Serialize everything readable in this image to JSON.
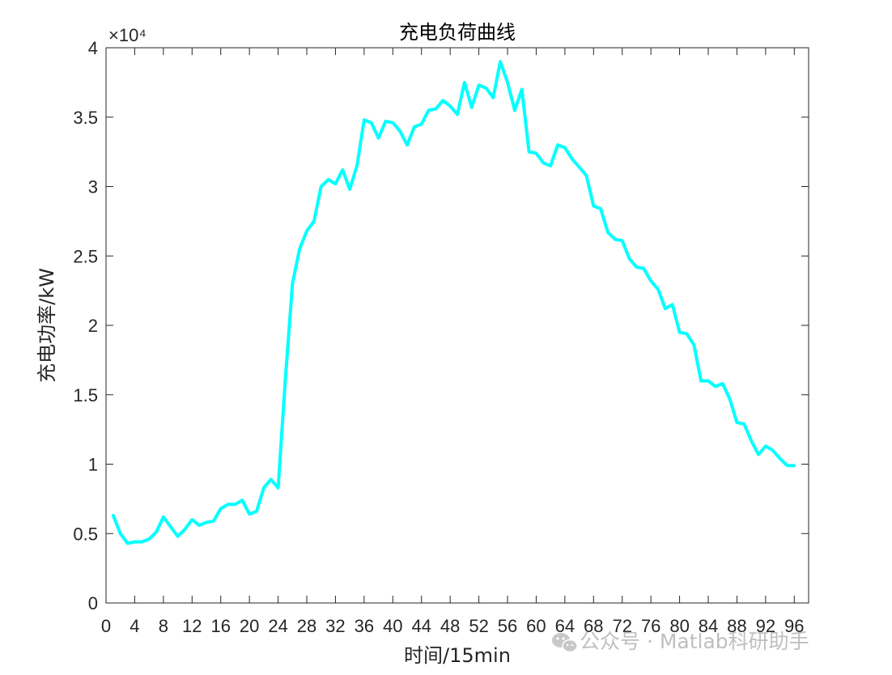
{
  "chart_data": {
    "type": "line",
    "title": "充电负荷曲线",
    "xlabel": "时间/15min",
    "ylabel": "充电功率/kW",
    "y_exponent_label": "×10⁴",
    "xlim": [
      0,
      98
    ],
    "ylim": [
      0,
      4
    ],
    "xticks": [
      0,
      4,
      8,
      12,
      16,
      20,
      24,
      28,
      32,
      36,
      40,
      44,
      48,
      52,
      56,
      60,
      64,
      68,
      72,
      76,
      80,
      84,
      88,
      92,
      96
    ],
    "yticks": [
      0,
      0.5,
      1,
      1.5,
      2,
      2.5,
      3,
      3.5,
      4
    ],
    "ytick_labels": [
      "0",
      "0.5",
      "1",
      "1.5",
      "2",
      "2.5",
      "3",
      "3.5",
      "4"
    ],
    "grid": false,
    "box": true,
    "series": [
      {
        "color": "#00ffff",
        "x": [
          1,
          2,
          3,
          4,
          5,
          6,
          7,
          8,
          9,
          10,
          11,
          12,
          13,
          14,
          15,
          16,
          17,
          18,
          19,
          20,
          21,
          22,
          23,
          24,
          25,
          26,
          27,
          28,
          29,
          30,
          31,
          32,
          33,
          34,
          35,
          36,
          37,
          38,
          39,
          40,
          41,
          42,
          43,
          44,
          45,
          46,
          47,
          48,
          49,
          50,
          51,
          52,
          53,
          54,
          55,
          56,
          57,
          58,
          59,
          60,
          61,
          62,
          63,
          64,
          65,
          66,
          67,
          68,
          69,
          70,
          71,
          72,
          73,
          74,
          75,
          76,
          77,
          78,
          79,
          80,
          81,
          82,
          83,
          84,
          85,
          86,
          87,
          88,
          89,
          90,
          91,
          92,
          93,
          94,
          95,
          96
        ],
        "values": [
          0.63,
          0.5,
          0.43,
          0.44,
          0.44,
          0.46,
          0.51,
          0.62,
          0.55,
          0.48,
          0.53,
          0.6,
          0.56,
          0.58,
          0.59,
          0.68,
          0.71,
          0.71,
          0.74,
          0.64,
          0.66,
          0.83,
          0.89,
          0.83,
          1.6,
          2.3,
          2.55,
          2.68,
          2.75,
          3.0,
          3.05,
          3.02,
          3.12,
          2.98,
          3.15,
          3.48,
          3.46,
          3.35,
          3.47,
          3.46,
          3.4,
          3.3,
          3.43,
          3.45,
          3.55,
          3.56,
          3.62,
          3.58,
          3.52,
          3.75,
          3.57,
          3.73,
          3.71,
          3.64,
          3.9,
          3.75,
          3.55,
          3.7,
          3.25,
          3.24,
          3.17,
          3.15,
          3.3,
          3.28,
          3.2,
          3.14,
          3.08,
          2.86,
          2.84,
          2.67,
          2.62,
          2.61,
          2.48,
          2.42,
          2.41,
          2.32,
          2.26,
          2.12,
          2.15,
          1.95,
          1.94,
          1.86,
          1.6,
          1.6,
          1.56,
          1.58,
          1.47,
          1.3,
          1.29,
          1.17,
          1.07,
          1.13,
          1.1,
          1.04,
          0.99,
          0.99
        ]
      }
    ]
  },
  "watermark": {
    "icon": "wechat-icon",
    "text": "公众号 · Matlab科研助手"
  }
}
